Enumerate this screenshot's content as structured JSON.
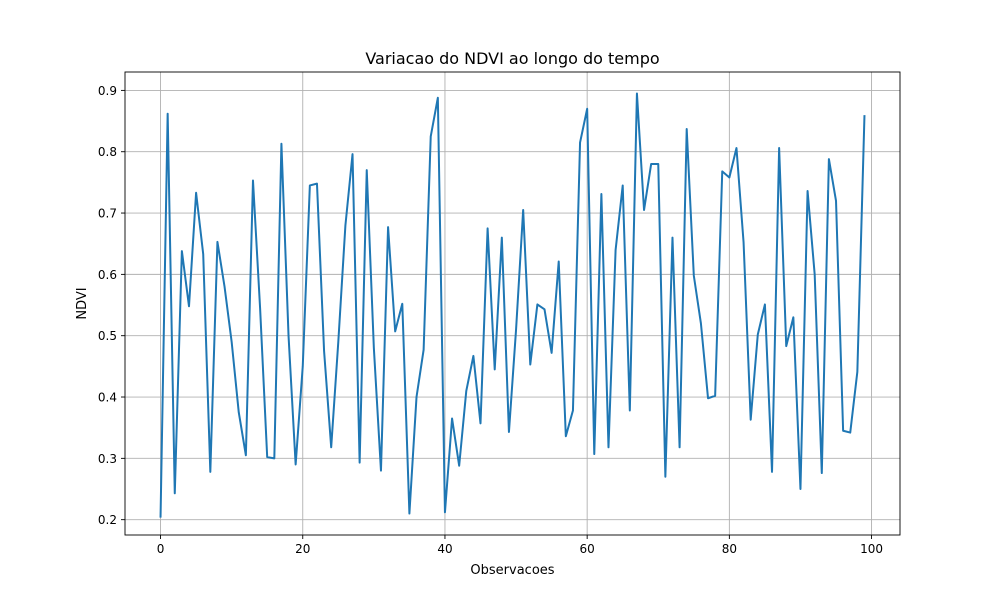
{
  "chart_data": {
    "type": "line",
    "title": "Variacao do NDVI ao longo do tempo",
    "xlabel": "Observacoes",
    "ylabel": "NDVI",
    "xlim": [
      -5,
      104
    ],
    "ylim": [
      0.175,
      0.93
    ],
    "xticks": [
      0,
      20,
      40,
      60,
      80,
      100
    ],
    "xtick_labels": [
      "0",
      "20",
      "40",
      "60",
      "80",
      "100"
    ],
    "yticks": [
      0.2,
      0.3,
      0.4,
      0.5,
      0.6,
      0.7,
      0.8,
      0.9
    ],
    "ytick_labels": [
      "0.2",
      "0.3",
      "0.4",
      "0.5",
      "0.6",
      "0.7",
      "0.8",
      "0.9"
    ],
    "grid": true,
    "series": [
      {
        "color": "#1f77b4",
        "x": [
          0,
          1,
          2,
          3,
          4,
          5,
          6,
          7,
          8,
          9,
          10,
          11,
          12,
          13,
          14,
          15,
          16,
          17,
          18,
          19,
          20,
          21,
          22,
          23,
          24,
          25,
          26,
          27,
          28,
          29,
          30,
          31,
          32,
          33,
          34,
          35,
          36,
          37,
          38,
          39,
          40,
          41,
          42,
          43,
          44,
          45,
          46,
          47,
          48,
          49,
          50,
          51,
          52,
          53,
          54,
          55,
          56,
          57,
          58,
          59,
          60,
          61,
          62,
          63,
          64,
          65,
          66,
          67,
          68,
          69,
          70,
          71,
          72,
          73,
          74,
          75,
          76,
          77,
          78,
          79,
          80,
          81,
          82,
          83,
          84,
          85,
          86,
          87,
          88,
          89,
          90,
          91,
          92,
          93,
          94,
          95,
          96,
          97,
          98,
          99
        ],
        "values": [
          0.205,
          0.862,
          0.243,
          0.638,
          0.548,
          0.733,
          0.633,
          0.278,
          0.653,
          0.58,
          0.49,
          0.375,
          0.305,
          0.753,
          0.545,
          0.302,
          0.3,
          0.813,
          0.5,
          0.29,
          0.45,
          0.745,
          0.748,
          0.475,
          0.318,
          0.49,
          0.68,
          0.796,
          0.293,
          0.77,
          0.48,
          0.28,
          0.677,
          0.507,
          0.552,
          0.21,
          0.4,
          0.477,
          0.825,
          0.888,
          0.212,
          0.365,
          0.288,
          0.41,
          0.467,
          0.357,
          0.675,
          0.445,
          0.66,
          0.343,
          0.51,
          0.705,
          0.453,
          0.551,
          0.543,
          0.472,
          0.621,
          0.336,
          0.378,
          0.815,
          0.87,
          0.307,
          0.731,
          0.318,
          0.64,
          0.745,
          0.378,
          0.895,
          0.705,
          0.78,
          0.78,
          0.27,
          0.66,
          0.318,
          0.837,
          0.598,
          0.52,
          0.398,
          0.402,
          0.768,
          0.758,
          0.806,
          0.652,
          0.363,
          0.502,
          0.551,
          0.278,
          0.806,
          0.483,
          0.53,
          0.25,
          0.736,
          0.6,
          0.276,
          0.788,
          0.72,
          0.345,
          0.342,
          0.441,
          0.858
        ]
      }
    ]
  }
}
